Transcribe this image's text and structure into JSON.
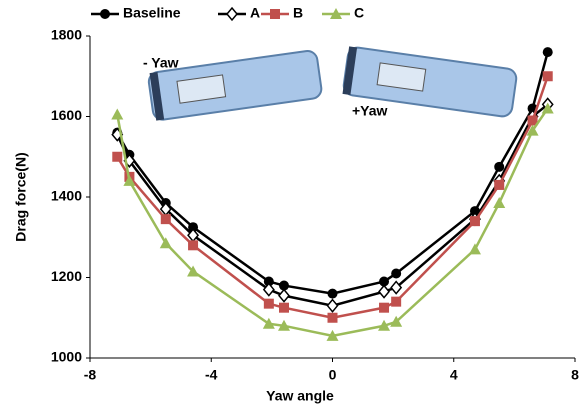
{
  "chart_data": {
    "type": "line",
    "y_label": "Drag force(N)",
    "x_label": "Yaw angle",
    "annotations": [
      "- Yaw",
      "+Yaw"
    ],
    "x": [
      -7.1,
      -6.7,
      -5.5,
      -4.6,
      -2.1,
      -1.6,
      0,
      1.7,
      2.1,
      4.7,
      5.5,
      6.6,
      7.1
    ],
    "series": [
      {
        "name": "Baseline",
        "color": "#000000",
        "marker": "circle",
        "values": [
          1560,
          1505,
          1385,
          1325,
          1190,
          1180,
          1160,
          1190,
          1210,
          1365,
          1475,
          1620,
          1760
        ]
      },
      {
        "name": "A",
        "color": "#000000",
        "marker": "diamond",
        "values": [
          1555,
          1490,
          1370,
          1305,
          1170,
          1155,
          1130,
          1165,
          1175,
          1345,
          1440,
          1600,
          1630
        ]
      },
      {
        "name": "B",
        "color": "#c0504d",
        "marker": "square",
        "values": [
          1500,
          1450,
          1345,
          1280,
          1135,
          1125,
          1100,
          1125,
          1140,
          1340,
          1430,
          1590,
          1700
        ]
      },
      {
        "name": "C",
        "color": "#9bbb59",
        "marker": "triangle",
        "values": [
          1605,
          1440,
          1285,
          1215,
          1085,
          1080,
          1055,
          1080,
          1090,
          1270,
          1385,
          1565,
          1620
        ]
      }
    ],
    "xlim": [
      -8,
      8
    ],
    "xticks": [
      -8,
      -4,
      0,
      4,
      8
    ],
    "ylim": [
      1000,
      1800
    ],
    "yticks": [
      1000,
      1200,
      1400,
      1600,
      1800
    ],
    "grid": false
  }
}
